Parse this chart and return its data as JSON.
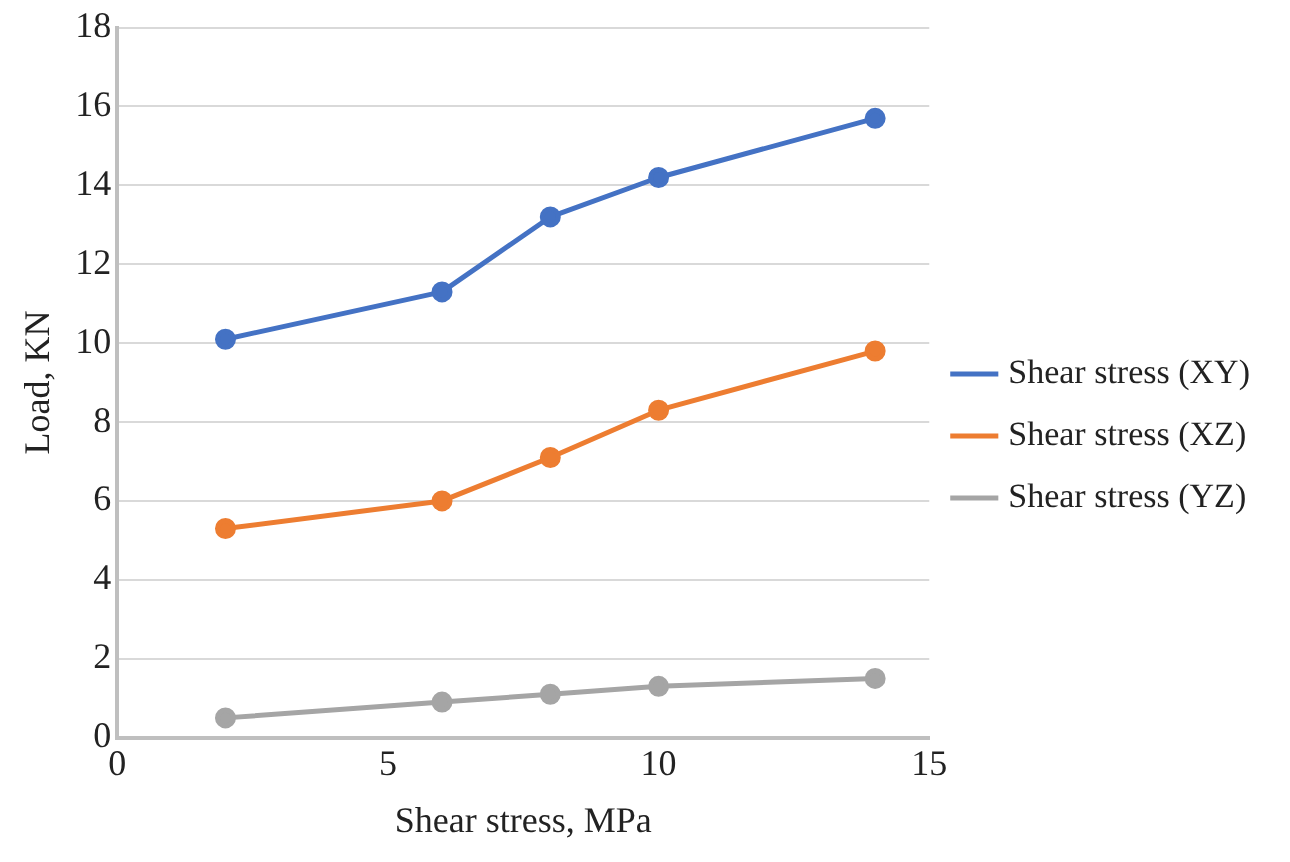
{
  "chart_data": {
    "type": "scatter",
    "xlabel": "Shear stress, MPa",
    "ylabel": "Load, KN",
    "x": [
      2,
      6,
      8,
      10,
      14
    ],
    "series": [
      {
        "name": "Shear stress (XY)",
        "color": "#4472c4",
        "type": "line",
        "values": [
          10.1,
          11.3,
          13.2,
          14.2,
          15.7
        ]
      },
      {
        "name": "Shear stress (XZ)",
        "color": "#ed7d31",
        "type": "line",
        "values": [
          5.3,
          6.0,
          7.1,
          8.3,
          9.8
        ]
      },
      {
        "name": "Shear stress (YZ)",
        "color": "#a5a5a5",
        "type": "line",
        "values": [
          0.5,
          0.9,
          1.1,
          1.3,
          1.5
        ]
      }
    ],
    "xlim": [
      0,
      15
    ],
    "xticks": [
      0,
      5,
      10,
      15
    ],
    "ylim": [
      0,
      18
    ],
    "yticks": [
      0,
      2,
      4,
      6,
      8,
      10,
      12,
      14,
      16,
      18
    ],
    "grid": "y",
    "legend": "right",
    "marker": "circle",
    "line_style": "solid"
  }
}
